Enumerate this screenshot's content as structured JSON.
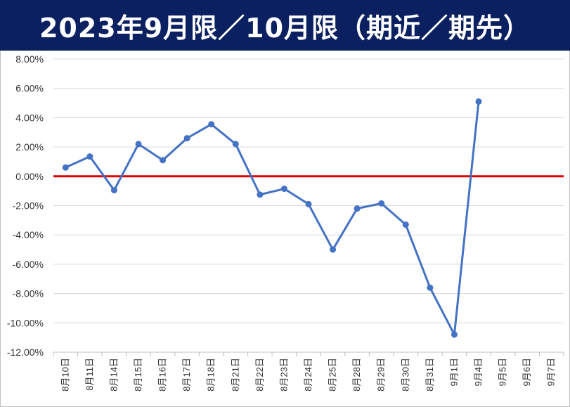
{
  "title": "2023年9月限／10月限（期近／期先）",
  "colors": {
    "header_bg": "#0b2060",
    "header_text": "#ffffff",
    "series": "#4472c4",
    "zero_line": "#e00000",
    "grid": "#d9d9d9",
    "axis": "#bfbfbf"
  },
  "chart_data": {
    "type": "line",
    "title": "2023年9月限／10月限（期近／期先）",
    "xlabel": "",
    "ylabel": "",
    "ylim": [
      -12,
      8
    ],
    "ytick_step": 2,
    "y_tick_labels": [
      "8.00%",
      "6.00%",
      "4.00%",
      "2.00%",
      "0.00%",
      "-2.00%",
      "-4.00%",
      "-6.00%",
      "-8.00%",
      "-10.00%",
      "-12.00%"
    ],
    "grid": true,
    "legend": "none",
    "reference_line": {
      "y": 0,
      "color": "#e00000"
    },
    "categories": [
      "8月10日",
      "8月11日",
      "8月14日",
      "8月15日",
      "8月16日",
      "8月17日",
      "8月18日",
      "8月21日",
      "8月22日",
      "8月23日",
      "8月24日",
      "8月25日",
      "8月28日",
      "8月29日",
      "8月30日",
      "8月31日",
      "9月1日",
      "9月4日",
      "9月5日",
      "9月6日",
      "9月7日"
    ],
    "series": [
      {
        "values": [
          0.6,
          1.35,
          -0.95,
          2.2,
          1.1,
          2.6,
          3.55,
          2.2,
          -1.25,
          -0.85,
          -1.9,
          -5.0,
          -2.2,
          -1.85,
          -3.3,
          -7.6,
          -10.8,
          5.1,
          null,
          null,
          null
        ]
      }
    ]
  }
}
